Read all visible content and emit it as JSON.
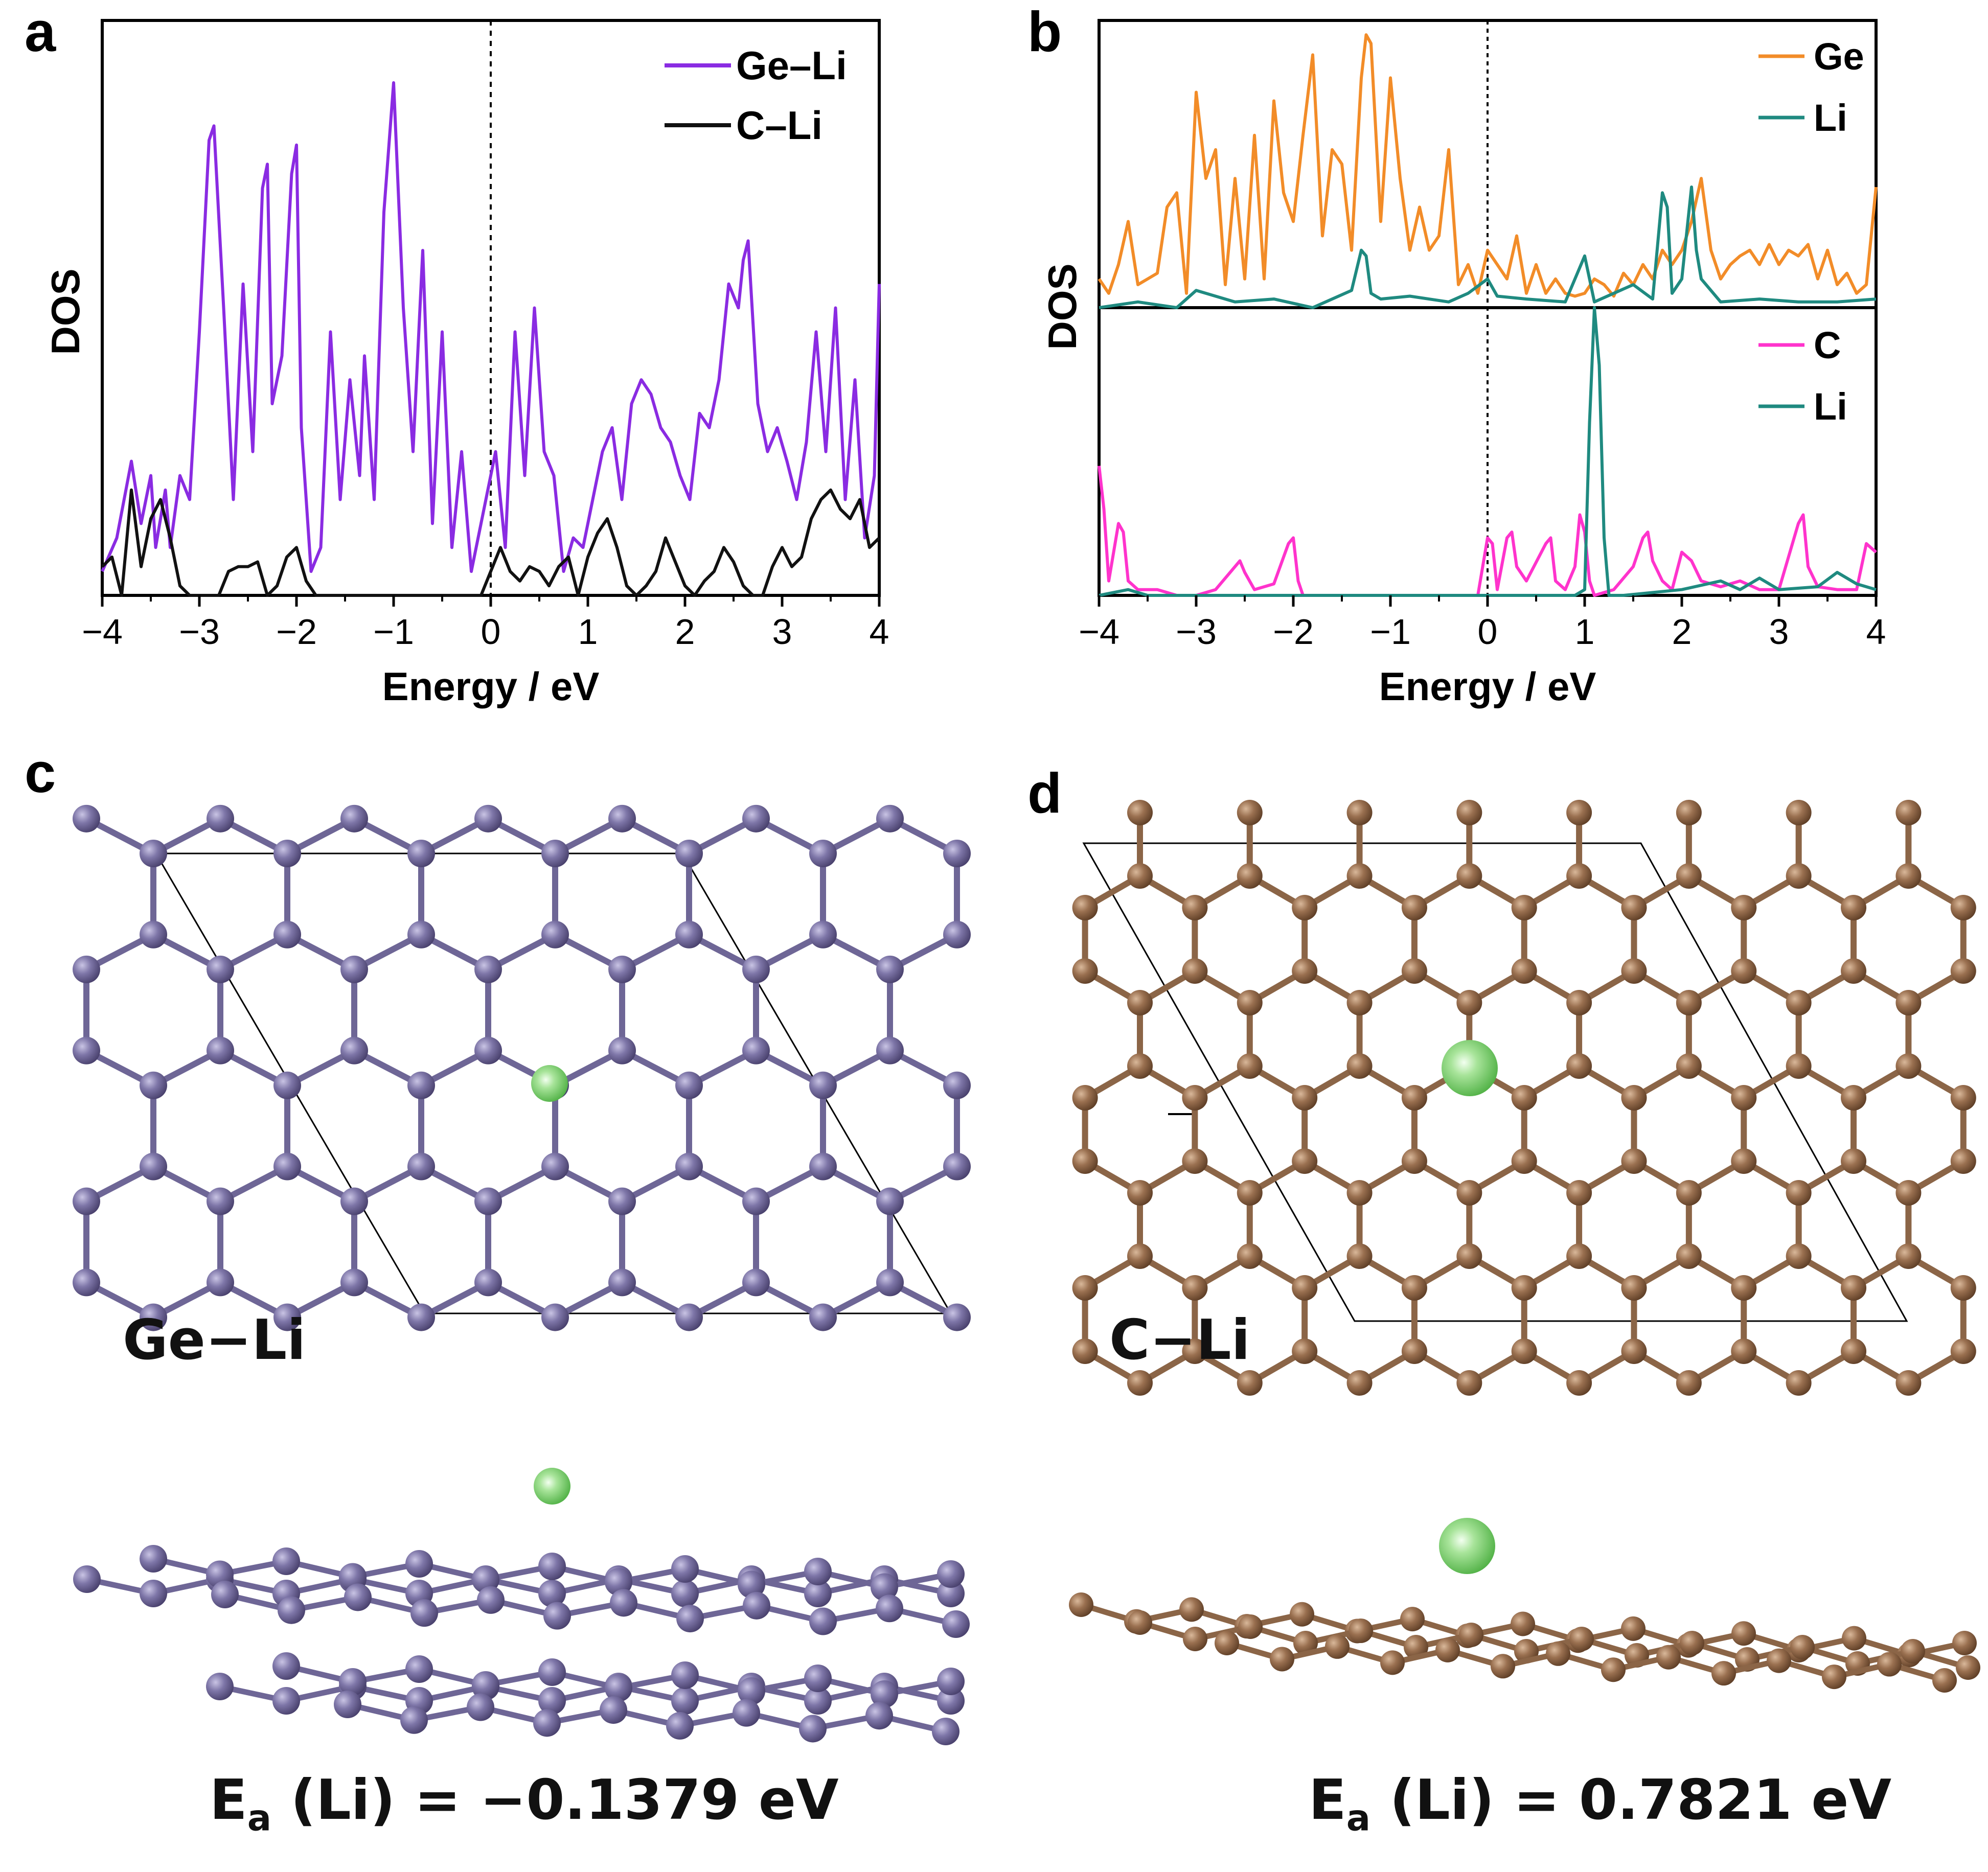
{
  "panels": {
    "a": "a",
    "b": "b",
    "c": "c",
    "d": "d"
  },
  "colors": {
    "ge_li": "#8A2BE2",
    "c_li": "#111111",
    "ge": "#F28C28",
    "li": "#1F8A80",
    "c": "#FF33CC",
    "ge_atom": "#6E6696",
    "c_atom": "#8B6547",
    "li_atom": "#6CCB5F"
  },
  "chart_data": [
    {
      "id": "a",
      "type": "line",
      "title": "",
      "xlabel": "Energy / eV",
      "ylabel": "DOS",
      "xlim": [
        -4,
        4
      ],
      "ylim": [
        0,
        1.2
      ],
      "xticks": [
        "−4",
        "−3",
        "−2",
        "−1",
        "0",
        "1",
        "2",
        "3",
        "4"
      ],
      "fermi_level": 0,
      "series": [
        {
          "name": "Ge–Li",
          "color": "#8A2BE2",
          "x": [
            -4.0,
            -3.85,
            -3.7,
            -3.6,
            -3.5,
            -3.45,
            -3.35,
            -3.3,
            -3.2,
            -3.1,
            -3.0,
            -2.9,
            -2.85,
            -2.75,
            -2.65,
            -2.55,
            -2.45,
            -2.35,
            -2.3,
            -2.25,
            -2.15,
            -2.05,
            -2.0,
            -1.95,
            -1.85,
            -1.75,
            -1.65,
            -1.55,
            -1.45,
            -1.35,
            -1.3,
            -1.2,
            -1.1,
            -1.0,
            -0.9,
            -0.8,
            -0.7,
            -0.6,
            -0.5,
            -0.4,
            -0.3,
            -0.2,
            -0.1,
            0.0,
            0.05,
            0.15,
            0.25,
            0.35,
            0.45,
            0.55,
            0.65,
            0.75,
            0.85,
            0.95,
            1.05,
            1.15,
            1.25,
            1.35,
            1.45,
            1.55,
            1.65,
            1.75,
            1.85,
            1.95,
            2.05,
            2.15,
            2.25,
            2.35,
            2.45,
            2.55,
            2.6,
            2.65,
            2.75,
            2.85,
            2.95,
            3.05,
            3.15,
            3.25,
            3.35,
            3.45,
            3.55,
            3.65,
            3.75,
            3.85,
            3.95,
            4.0
          ],
          "values": [
            0.05,
            0.12,
            0.28,
            0.15,
            0.25,
            0.1,
            0.22,
            0.1,
            0.25,
            0.2,
            0.55,
            0.95,
            0.98,
            0.6,
            0.2,
            0.65,
            0.3,
            0.85,
            0.9,
            0.4,
            0.5,
            0.88,
            0.94,
            0.35,
            0.05,
            0.1,
            0.55,
            0.2,
            0.45,
            0.25,
            0.5,
            0.2,
            0.8,
            1.07,
            0.6,
            0.3,
            0.72,
            0.15,
            0.55,
            0.1,
            0.3,
            0.05,
            0.15,
            0.25,
            0.3,
            0.1,
            0.55,
            0.25,
            0.6,
            0.3,
            0.25,
            0.05,
            0.12,
            0.1,
            0.2,
            0.3,
            0.35,
            0.2,
            0.4,
            0.45,
            0.42,
            0.35,
            0.32,
            0.25,
            0.2,
            0.38,
            0.35,
            0.45,
            0.65,
            0.6,
            0.7,
            0.74,
            0.4,
            0.3,
            0.35,
            0.28,
            0.2,
            0.32,
            0.55,
            0.3,
            0.6,
            0.2,
            0.45,
            0.12,
            0.25,
            0.65
          ]
        },
        {
          "name": "C–Li",
          "color": "#111111",
          "x": [
            -4.0,
            -3.9,
            -3.8,
            -3.7,
            -3.6,
            -3.5,
            -3.4,
            -3.3,
            -3.2,
            -3.1,
            -3.0,
            -2.9,
            -2.8,
            -2.7,
            -2.6,
            -2.5,
            -2.4,
            -2.3,
            -2.2,
            -2.1,
            -2.0,
            -1.9,
            -1.8,
            -1.7,
            -1.6,
            -1.0,
            -0.5,
            -0.1,
            0.0,
            0.1,
            0.2,
            0.3,
            0.4,
            0.5,
            0.6,
            0.7,
            0.8,
            0.9,
            1.0,
            1.1,
            1.2,
            1.3,
            1.4,
            1.5,
            1.6,
            1.7,
            1.8,
            1.9,
            2.0,
            2.1,
            2.2,
            2.3,
            2.4,
            2.5,
            2.6,
            2.7,
            2.8,
            2.9,
            3.0,
            3.1,
            3.2,
            3.3,
            3.4,
            3.5,
            3.6,
            3.7,
            3.8,
            3.9,
            4.0
          ],
          "values": [
            0.06,
            0.08,
            0.0,
            0.22,
            0.06,
            0.16,
            0.2,
            0.12,
            0.02,
            0.0,
            0.0,
            0.0,
            0.0,
            0.05,
            0.06,
            0.06,
            0.07,
            0.0,
            0.02,
            0.08,
            0.1,
            0.03,
            0.0,
            0.0,
            0.0,
            0.0,
            0.0,
            0.0,
            0.05,
            0.1,
            0.05,
            0.03,
            0.06,
            0.05,
            0.02,
            0.06,
            0.08,
            0.0,
            0.08,
            0.13,
            0.16,
            0.1,
            0.02,
            0.0,
            0.02,
            0.05,
            0.12,
            0.07,
            0.02,
            0.0,
            0.03,
            0.05,
            0.1,
            0.07,
            0.02,
            0.0,
            0.0,
            0.06,
            0.1,
            0.06,
            0.08,
            0.16,
            0.2,
            0.22,
            0.18,
            0.16,
            0.2,
            0.1,
            0.12
          ]
        }
      ]
    },
    {
      "id": "b-top",
      "type": "line",
      "xlabel": "",
      "ylabel": "DOS",
      "xlim": [
        -4,
        4
      ],
      "ylim": [
        0,
        1.0
      ],
      "fermi_level": 0,
      "series": [
        {
          "name": "Ge",
          "color": "#F28C28",
          "x": [
            -4.0,
            -3.9,
            -3.8,
            -3.7,
            -3.6,
            -3.5,
            -3.4,
            -3.3,
            -3.2,
            -3.1,
            -3.0,
            -2.9,
            -2.8,
            -2.7,
            -2.6,
            -2.5,
            -2.4,
            -2.3,
            -2.2,
            -2.1,
            -2.0,
            -1.9,
            -1.8,
            -1.7,
            -1.6,
            -1.5,
            -1.4,
            -1.3,
            -1.25,
            -1.2,
            -1.1,
            -1.0,
            -0.9,
            -0.8,
            -0.7,
            -0.6,
            -0.5,
            -0.4,
            -0.3,
            -0.2,
            -0.1,
            0.0,
            0.1,
            0.2,
            0.3,
            0.4,
            0.5,
            0.6,
            0.7,
            0.8,
            0.9,
            1.0,
            1.1,
            1.2,
            1.3,
            1.4,
            1.5,
            1.6,
            1.7,
            1.8,
            1.9,
            2.0,
            2.1,
            2.2,
            2.3,
            2.4,
            2.5,
            2.6,
            2.7,
            2.8,
            2.9,
            3.0,
            3.1,
            3.2,
            3.3,
            3.4,
            3.5,
            3.6,
            3.7,
            3.8,
            3.9,
            4.0
          ],
          "values": [
            0.1,
            0.05,
            0.15,
            0.3,
            0.08,
            0.1,
            0.12,
            0.35,
            0.4,
            0.05,
            0.75,
            0.45,
            0.55,
            0.08,
            0.45,
            0.1,
            0.6,
            0.1,
            0.72,
            0.4,
            0.3,
            0.6,
            0.88,
            0.25,
            0.55,
            0.5,
            0.2,
            0.8,
            0.95,
            0.92,
            0.3,
            0.8,
            0.45,
            0.2,
            0.35,
            0.2,
            0.25,
            0.55,
            0.08,
            0.15,
            0.05,
            0.2,
            0.15,
            0.1,
            0.25,
            0.05,
            0.15,
            0.05,
            0.1,
            0.05,
            0.04,
            0.05,
            0.1,
            0.08,
            0.04,
            0.12,
            0.08,
            0.15,
            0.1,
            0.2,
            0.15,
            0.2,
            0.3,
            0.45,
            0.2,
            0.1,
            0.15,
            0.18,
            0.2,
            0.15,
            0.22,
            0.15,
            0.2,
            0.18,
            0.22,
            0.1,
            0.2,
            0.08,
            0.12,
            0.05,
            0.08,
            0.42
          ]
        },
        {
          "name": "Li",
          "color": "#1F8A80",
          "x": [
            -4.0,
            -3.6,
            -3.2,
            -3.0,
            -2.6,
            -2.2,
            -1.8,
            -1.4,
            -1.3,
            -1.25,
            -1.2,
            -1.1,
            -0.8,
            -0.4,
            -0.2,
            0.0,
            0.1,
            0.4,
            0.8,
            1.0,
            1.05,
            1.1,
            1.3,
            1.5,
            1.7,
            1.8,
            1.85,
            1.9,
            2.0,
            2.1,
            2.15,
            2.2,
            2.4,
            2.8,
            3.2,
            3.6,
            4.0
          ],
          "values": [
            0.0,
            0.02,
            0.0,
            0.06,
            0.02,
            0.03,
            0.0,
            0.06,
            0.2,
            0.18,
            0.05,
            0.03,
            0.04,
            0.02,
            0.05,
            0.1,
            0.04,
            0.03,
            0.02,
            0.18,
            0.1,
            0.02,
            0.05,
            0.08,
            0.03,
            0.4,
            0.35,
            0.05,
            0.1,
            0.42,
            0.2,
            0.1,
            0.02,
            0.03,
            0.02,
            0.02,
            0.03
          ]
        }
      ]
    },
    {
      "id": "b-bottom",
      "type": "line",
      "xlabel": "Energy / eV",
      "ylabel": "DOS",
      "xlim": [
        -4,
        4
      ],
      "ylim": [
        0,
        1.0
      ],
      "xticks": [
        "−4",
        "−3",
        "−2",
        "−1",
        "0",
        "1",
        "2",
        "3",
        "4"
      ],
      "fermi_level": 0,
      "series": [
        {
          "name": "C",
          "color": "#FF33CC",
          "x": [
            -4.0,
            -3.95,
            -3.9,
            -3.8,
            -3.75,
            -3.7,
            -3.6,
            -3.4,
            -3.2,
            -3.0,
            -2.8,
            -2.6,
            -2.55,
            -2.5,
            -2.4,
            -2.2,
            -2.05,
            -2.0,
            -1.95,
            -1.9,
            -1.0,
            -0.1,
            0.0,
            0.05,
            0.1,
            0.2,
            0.25,
            0.3,
            0.4,
            0.6,
            0.65,
            0.7,
            0.8,
            0.9,
            0.95,
            1.0,
            1.05,
            1.1,
            1.3,
            1.5,
            1.6,
            1.65,
            1.7,
            1.8,
            1.9,
            2.0,
            2.1,
            2.2,
            2.4,
            2.6,
            2.8,
            3.0,
            3.2,
            3.25,
            3.3,
            3.4,
            3.6,
            3.8,
            3.9,
            4.0
          ],
          "values": [
            0.45,
            0.3,
            0.05,
            0.25,
            0.22,
            0.05,
            0.02,
            0.02,
            0.0,
            0.0,
            0.02,
            0.1,
            0.12,
            0.08,
            0.02,
            0.04,
            0.18,
            0.2,
            0.05,
            0.0,
            0.0,
            0.0,
            0.2,
            0.18,
            0.02,
            0.2,
            0.22,
            0.1,
            0.05,
            0.18,
            0.2,
            0.05,
            0.02,
            0.1,
            0.28,
            0.22,
            0.05,
            0.0,
            0.02,
            0.1,
            0.2,
            0.22,
            0.12,
            0.05,
            0.02,
            0.15,
            0.12,
            0.05,
            0.03,
            0.05,
            0.02,
            0.02,
            0.25,
            0.28,
            0.1,
            0.03,
            0.02,
            0.02,
            0.18,
            0.15
          ]
        },
        {
          "name": "Li",
          "color": "#1F8A80",
          "x": [
            -4.0,
            -3.7,
            -3.6,
            -3.5,
            -2.0,
            0.9,
            1.0,
            1.05,
            1.1,
            1.15,
            1.2,
            1.25,
            1.4,
            2.0,
            2.4,
            2.6,
            2.8,
            3.0,
            3.4,
            3.6,
            3.8,
            4.0
          ],
          "values": [
            0.0,
            0.02,
            0.01,
            0.0,
            0.0,
            0.0,
            0.02,
            0.6,
            1.0,
            0.8,
            0.2,
            0.0,
            0.0,
            0.02,
            0.05,
            0.02,
            0.06,
            0.02,
            0.03,
            0.08,
            0.04,
            0.02
          ]
        }
      ]
    }
  ],
  "structures": {
    "c": {
      "label": "Ge−Li",
      "energy_main": "E",
      "energy_sub": "a",
      "energy_rest": " (Li) = −0.1379 eV"
    },
    "d": {
      "label": "C−Li",
      "energy_main": "E",
      "energy_sub": "a",
      "energy_rest": " (Li) = 0.7821 eV"
    }
  }
}
